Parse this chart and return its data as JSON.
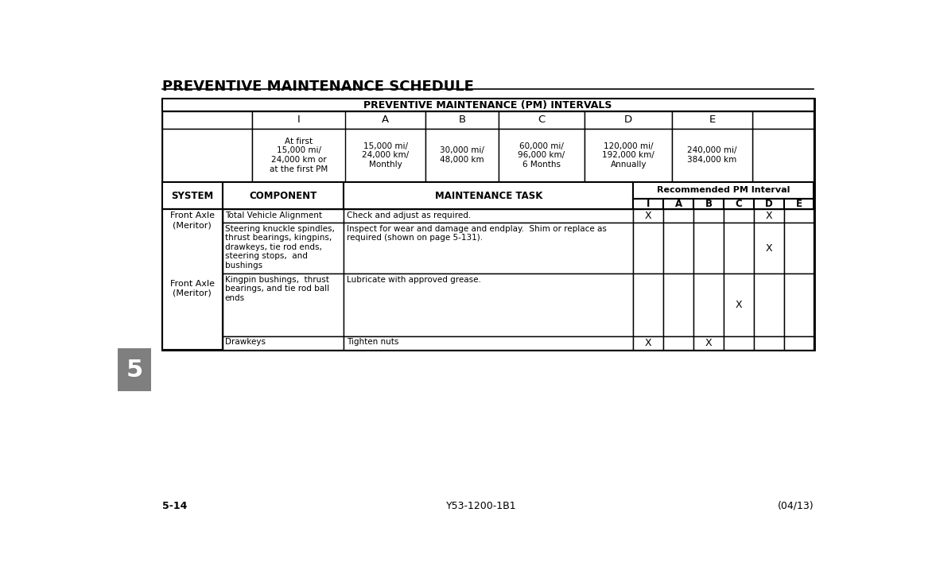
{
  "page_title": "PREVENTIVE MAINTENANCE SCHEDULE",
  "chapter_num": "5",
  "footer_left": "5-14",
  "footer_center": "Y53-1200-1B1",
  "footer_right": "(04/13)",
  "table_title": "PREVENTIVE MAINTENANCE (PM) INTERVALS",
  "interval_headers": [
    "I",
    "A",
    "B",
    "C",
    "D",
    "E"
  ],
  "interval_descriptions": [
    "At first\n15,000 mi/\n24,000 km or\nat the first PM",
    "15,000 mi/\n24,000 km/\nMonthly",
    "30,000 mi/\n48,000 km",
    "60,000 mi/\n96,000 km/\n6 Months",
    "120,000 mi/\n192,000 km/\nAnnually",
    "240,000 mi/\n384,000 km"
  ],
  "pm_sub_headers": [
    "I",
    "A",
    "B",
    "C",
    "D",
    "E"
  ],
  "rows": [
    {
      "system": "Front Axle\n(Meritor)",
      "component": "Total Vehicle Alignment",
      "task": "Check and adjust as required.",
      "I": "X",
      "A": "",
      "B": "",
      "C": "",
      "D": "X",
      "E": ""
    },
    {
      "system": "",
      "component": "Steering knuckle spindles,\nthrust bearings, kingpins,\ndrawkeys, tie rod ends,\nsteering stops,  and\nbushings",
      "task": "Inspect for wear and damage and endplay.  Shim or replace as\nrequired (shown on page 5-131).",
      "I": "",
      "A": "",
      "B": "",
      "C": "",
      "D": "X",
      "E": ""
    },
    {
      "system": "",
      "component": "Kingpin bushings,  thrust\nbearings, and tie rod ball\nends",
      "task": "Lubricate with approved grease.",
      "I": "",
      "A": "",
      "B": "",
      "C": "X",
      "D": "",
      "E": ""
    },
    {
      "system": "",
      "component": "Drawkeys",
      "task": "Tighten nuts",
      "I": "X",
      "A": "",
      "B": "X",
      "C": "",
      "D": "",
      "E": ""
    }
  ],
  "bg_color": "#ffffff",
  "gray_tab_color": "#7f7f7f"
}
